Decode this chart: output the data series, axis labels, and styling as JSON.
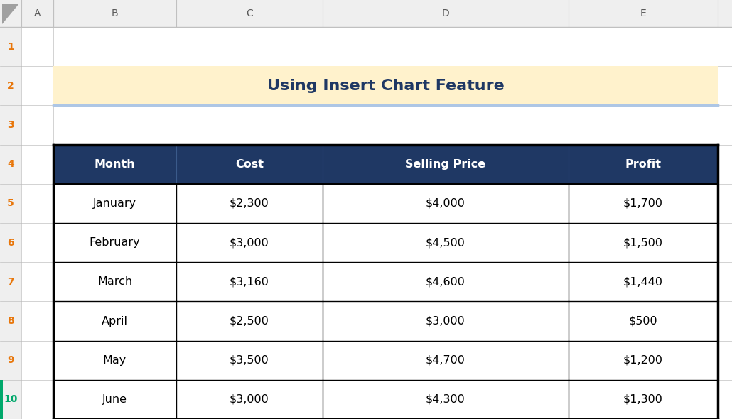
{
  "title": "Using Insert Chart Feature",
  "title_bg": "#FFF2CC",
  "title_border": "#ADC6E5",
  "header_bg": "#1F3864",
  "header_text_color": "#FFFFFF",
  "cell_bg": "#FFFFFF",
  "cell_text_color": "#000000",
  "outer_bg": "#D9D9D9",
  "spreadsheet_bg": "#FFFFFF",
  "col_header_bg": "#EFEFEF",
  "row_header_bg": "#EFEFEF",
  "row_header_text": "#E8760A",
  "row10_text": "#00A86B",
  "row10_indicator": "#00A86B",
  "col_header_text": "#595959",
  "table_headers": [
    "Month",
    "Cost",
    "Selling Price",
    "Profit"
  ],
  "rows": [
    [
      "January",
      "$2,300",
      "$4,000",
      "$1,700"
    ],
    [
      "February",
      "$3,000",
      "$4,500",
      "$1,500"
    ],
    [
      "March",
      "$3,160",
      "$4,600",
      "$1,440"
    ],
    [
      "April",
      "$2,500",
      "$3,000",
      "$500"
    ],
    [
      "May",
      "$3,500",
      "$4,700",
      "$1,200"
    ],
    [
      "June",
      "$3,000",
      "$4,300",
      "$1,300"
    ]
  ],
  "figsize": [
    10.3,
    5.9
  ],
  "dpi": 100
}
